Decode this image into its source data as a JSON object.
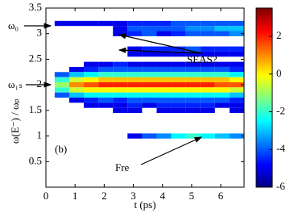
{
  "chart_data": {
    "type": "heatmap",
    "xlabel": "t  (ps)",
    "ylabel": "ω(E⁻) / ωₚ",
    "annotations": [
      "ω₀",
      "ω₁ₛ",
      "SEAS?",
      "(b)",
      "Fre"
    ],
    "xbins": [
      0.3,
      0.8,
      1.3,
      1.8,
      2.3,
      2.8,
      3.3,
      3.8,
      4.3,
      4.8,
      5.3,
      5.8,
      6.3,
      6.8
    ],
    "y": [
      3.2,
      3.1,
      3.0,
      2.7,
      2.6,
      2.4,
      2.3,
      2.2,
      2.1,
      2.0,
      1.9,
      1.8,
      1.7,
      1.6,
      1.5,
      1.0
    ],
    "z": [
      [
        -5,
        -5,
        -5,
        -5,
        -5,
        -4.5,
        -4.5,
        -4.5,
        -4,
        -4,
        -4,
        -4,
        -4
      ],
      [
        null,
        null,
        null,
        null,
        -5,
        -4,
        -4,
        -4,
        -4,
        -3.5,
        -3.5,
        -3,
        -3
      ],
      [
        null,
        null,
        null,
        null,
        -5,
        -4.5,
        -4,
        -5,
        -4.5,
        -4,
        -4,
        -4,
        -3.5
      ],
      [
        null,
        null,
        null,
        null,
        null,
        -5,
        -4.5,
        -4.5,
        -4.5,
        -4,
        -4.5,
        -4.5,
        -4.5
      ],
      [
        null,
        null,
        null,
        null,
        null,
        -5,
        -5,
        -5,
        -5,
        -5,
        -5,
        -5,
        -5
      ],
      [
        null,
        null,
        -5,
        -5,
        -4.5,
        -5,
        -5,
        -5,
        -5,
        -5,
        -5,
        -5,
        -5
      ],
      [
        null,
        -5,
        -4.5,
        -4,
        -4,
        -4,
        -4,
        -4,
        -4,
        -4,
        -4,
        -4,
        -4.5
      ],
      [
        -4,
        -3,
        -2.5,
        -2,
        -2,
        -2,
        -2,
        -2,
        -2,
        -2,
        -2,
        -2,
        -2.5
      ],
      [
        -2,
        -0.5,
        0,
        0.5,
        0.5,
        0.5,
        0.5,
        0.5,
        0.5,
        0.5,
        0.5,
        0.5,
        0
      ],
      [
        -1,
        1,
        1.5,
        2,
        2,
        2,
        2,
        2,
        2,
        2,
        2,
        1.5,
        1.5
      ],
      [
        -2,
        -0.5,
        0,
        0,
        0,
        0,
        0,
        0,
        0,
        0,
        0,
        0,
        -0.5
      ],
      [
        -4,
        -3,
        -2.5,
        -2.5,
        -2.5,
        -2.5,
        -2.5,
        -2.5,
        -2.5,
        -2.5,
        -2.5,
        -2.5,
        -3
      ],
      [
        null,
        -5,
        -4.5,
        -4,
        -4.5,
        -4,
        -4,
        -4,
        -4,
        -4,
        -4,
        -4,
        -4.5
      ],
      [
        null,
        null,
        -5,
        -5,
        -5,
        -4.5,
        -5,
        -4.5,
        -4.5,
        -4.5,
        -4.5,
        -5,
        -5
      ],
      [
        null,
        null,
        null,
        null,
        -5,
        -5,
        null,
        -5,
        -5,
        -5,
        -5,
        null,
        -5
      ],
      [
        null,
        null,
        null,
        null,
        null,
        -5,
        -4,
        -3.5,
        -2.5,
        -2,
        -2.5,
        -3,
        -3.5
      ]
    ],
    "xlim": [
      0,
      6.8
    ],
    "xticks": [
      0,
      1,
      2,
      3,
      4,
      5,
      6
    ],
    "ylim": [
      0,
      3.5
    ],
    "yticks": [
      0.5,
      1,
      1.5,
      2,
      2.5,
      3,
      3.5
    ],
    "clim": [
      -6,
      3.5
    ],
    "cticks": [
      -6,
      -4,
      -2,
      0,
      2
    ],
    "colormap": "jet"
  }
}
